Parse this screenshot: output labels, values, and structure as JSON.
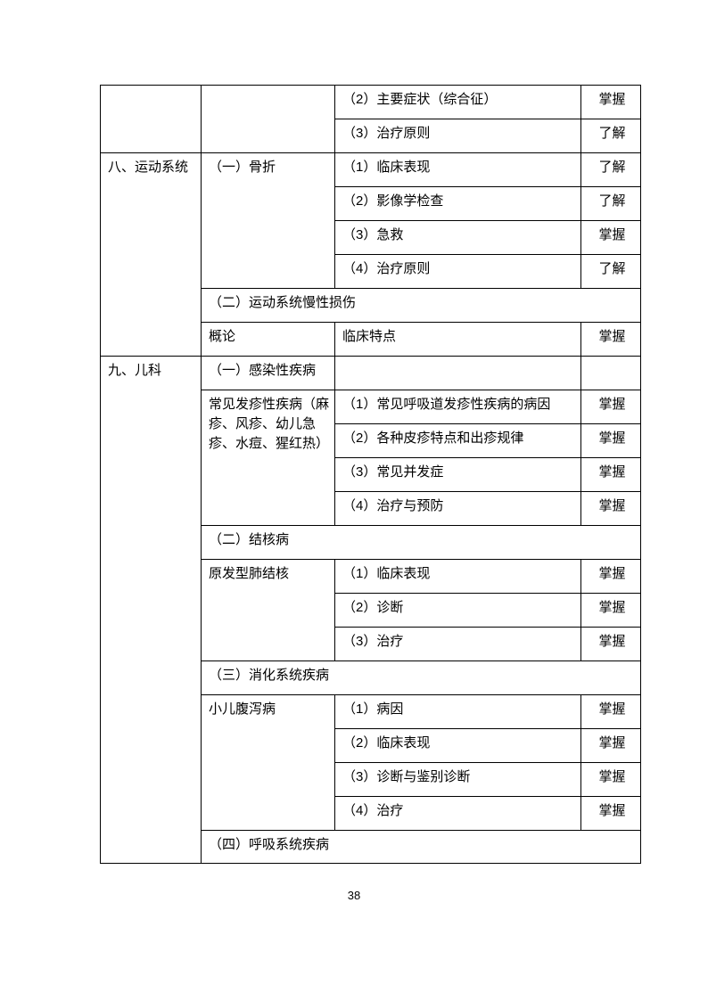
{
  "page_number": "38",
  "mastery_levels": {
    "master": "掌握",
    "understand": "了解"
  },
  "table": {
    "column_names": [
      "system",
      "topic",
      "item",
      "level"
    ],
    "rows": [
      {
        "cells": [
          {
            "text": "",
            "type": "system",
            "rowspan": 2
          },
          {
            "text": "",
            "type": "topic",
            "rowspan": 2
          },
          {
            "text": "（2）主要症状（综合征）",
            "type": "item"
          },
          {
            "text": "掌握",
            "type": "level"
          }
        ]
      },
      {
        "cells": [
          {
            "text": "（3）治疗原则",
            "type": "item"
          },
          {
            "text": "了解",
            "type": "level"
          }
        ]
      },
      {
        "cells": [
          {
            "text": "八、运动系统",
            "type": "system",
            "rowspan": 6
          },
          {
            "text": "（一）骨折",
            "type": "topic",
            "rowspan": 4
          },
          {
            "text": "（1）临床表现",
            "type": "item"
          },
          {
            "text": "了解",
            "type": "level"
          }
        ]
      },
      {
        "cells": [
          {
            "text": "（2）影像学检查",
            "type": "item"
          },
          {
            "text": "了解",
            "type": "level"
          }
        ]
      },
      {
        "cells": [
          {
            "text": "（3）急救",
            "type": "item"
          },
          {
            "text": "掌握",
            "type": "level"
          }
        ]
      },
      {
        "cells": [
          {
            "text": "（4）治疗原则",
            "type": "item"
          },
          {
            "text": "了解",
            "type": "level"
          }
        ]
      },
      {
        "cells": [
          {
            "text": "（二）运动系统慢性损伤",
            "type": "span",
            "colspan": 3
          }
        ]
      },
      {
        "cells": [
          {
            "text": "概论",
            "type": "topic"
          },
          {
            "text": "临床特点",
            "type": "item"
          },
          {
            "text": "掌握",
            "type": "level"
          }
        ]
      },
      {
        "cells": [
          {
            "text": "九、儿科",
            "type": "system",
            "rowspan": 15
          },
          {
            "text": "（一）感染性疾病",
            "type": "topic"
          },
          {
            "text": "",
            "type": "item"
          },
          {
            "text": "",
            "type": "level"
          }
        ]
      },
      {
        "cells": [
          {
            "text": "常见发疹性疾病（麻疹、风疹、幼儿急疹、水痘、猩红热）",
            "type": "topic",
            "rowspan": 4
          },
          {
            "text": "（1）常见呼吸道发疹性疾病的病因",
            "type": "item"
          },
          {
            "text": "掌握",
            "type": "level"
          }
        ]
      },
      {
        "cells": [
          {
            "text": "（2）各种皮疹特点和出疹规律",
            "type": "item"
          },
          {
            "text": "掌握",
            "type": "level"
          }
        ]
      },
      {
        "cells": [
          {
            "text": "（3）常见并发症",
            "type": "item"
          },
          {
            "text": "掌握",
            "type": "level"
          }
        ]
      },
      {
        "cells": [
          {
            "text": "（4）治疗与预防",
            "type": "item"
          },
          {
            "text": "掌握",
            "type": "level"
          }
        ]
      },
      {
        "cells": [
          {
            "text": "（二）结核病",
            "type": "span",
            "colspan": 3
          }
        ]
      },
      {
        "cells": [
          {
            "text": "原发型肺结核",
            "type": "topic",
            "rowspan": 3
          },
          {
            "text": "（1）临床表现",
            "type": "item"
          },
          {
            "text": "掌握",
            "type": "level"
          }
        ]
      },
      {
        "cells": [
          {
            "text": "（2）诊断",
            "type": "item"
          },
          {
            "text": "掌握",
            "type": "level"
          }
        ]
      },
      {
        "cells": [
          {
            "text": "（3）治疗",
            "type": "item"
          },
          {
            "text": "掌握",
            "type": "level"
          }
        ]
      },
      {
        "cells": [
          {
            "text": "（三）消化系统疾病",
            "type": "span",
            "colspan": 3
          }
        ]
      },
      {
        "cells": [
          {
            "text": "小儿腹泻病",
            "type": "topic",
            "rowspan": 4
          },
          {
            "text": "（1）病因",
            "type": "item"
          },
          {
            "text": "掌握",
            "type": "level"
          }
        ]
      },
      {
        "cells": [
          {
            "text": "（2）临床表现",
            "type": "item"
          },
          {
            "text": "掌握",
            "type": "level"
          }
        ]
      },
      {
        "cells": [
          {
            "text": "（3）诊断与鉴别诊断",
            "type": "item"
          },
          {
            "text": "掌握",
            "type": "level"
          }
        ]
      },
      {
        "cells": [
          {
            "text": "（4）治疗",
            "type": "item"
          },
          {
            "text": "掌握",
            "type": "level"
          }
        ]
      },
      {
        "cells": [
          {
            "text": "（四）呼吸系统疾病",
            "type": "span",
            "colspan": 3
          }
        ]
      }
    ]
  }
}
